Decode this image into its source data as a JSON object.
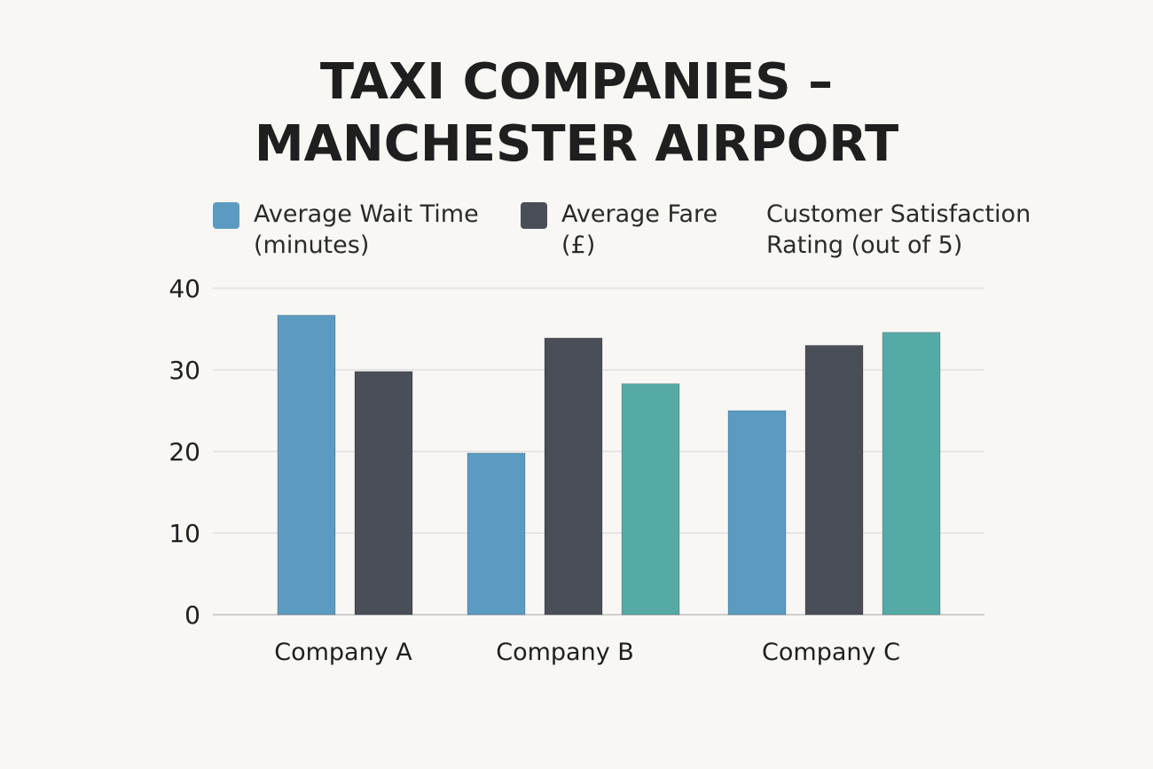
{
  "title_lines": [
    "TAXI COMPANIES –",
    "MANCHESTER AIRPORT"
  ],
  "legend": [
    {
      "line1": "Average Wait Time",
      "line2": "(minutes)",
      "color": "#5b9bc2",
      "show_swatch": true
    },
    {
      "line1": "Average Fare",
      "line2": "(£)",
      "color": "#4a4e57",
      "show_swatch": true
    },
    {
      "line1": "Customer Satisfaction",
      "line2": "Rating (out of 5)",
      "color": "#55aaa6",
      "show_swatch": false
    }
  ],
  "chart_data": {
    "type": "bar",
    "title": "TAXI COMPANIES – MANCHESTER AIRPORT",
    "categories": [
      "Company A",
      "Company B",
      "Company C"
    ],
    "series": [
      {
        "name": "Average Wait Time (minutes)",
        "color": "#5b9bc2",
        "values": [
          36.7,
          19.8,
          25
        ]
      },
      {
        "name": "Average Fare (£)",
        "color": "#4a4e57",
        "values": [
          29.8,
          33.9,
          33
        ]
      },
      {
        "name": "Customer Satisfaction Rating (out of 5)",
        "color": "#55aaa6",
        "values": [
          null,
          28.3,
          34.6
        ]
      }
    ],
    "ylim": [
      0,
      40
    ],
    "yticks": [
      "0",
      "10",
      "20",
      "30",
      "40"
    ],
    "ytick_values": [
      0,
      10,
      20,
      30,
      40
    ],
    "grid": true,
    "legend_position": "top"
  }
}
